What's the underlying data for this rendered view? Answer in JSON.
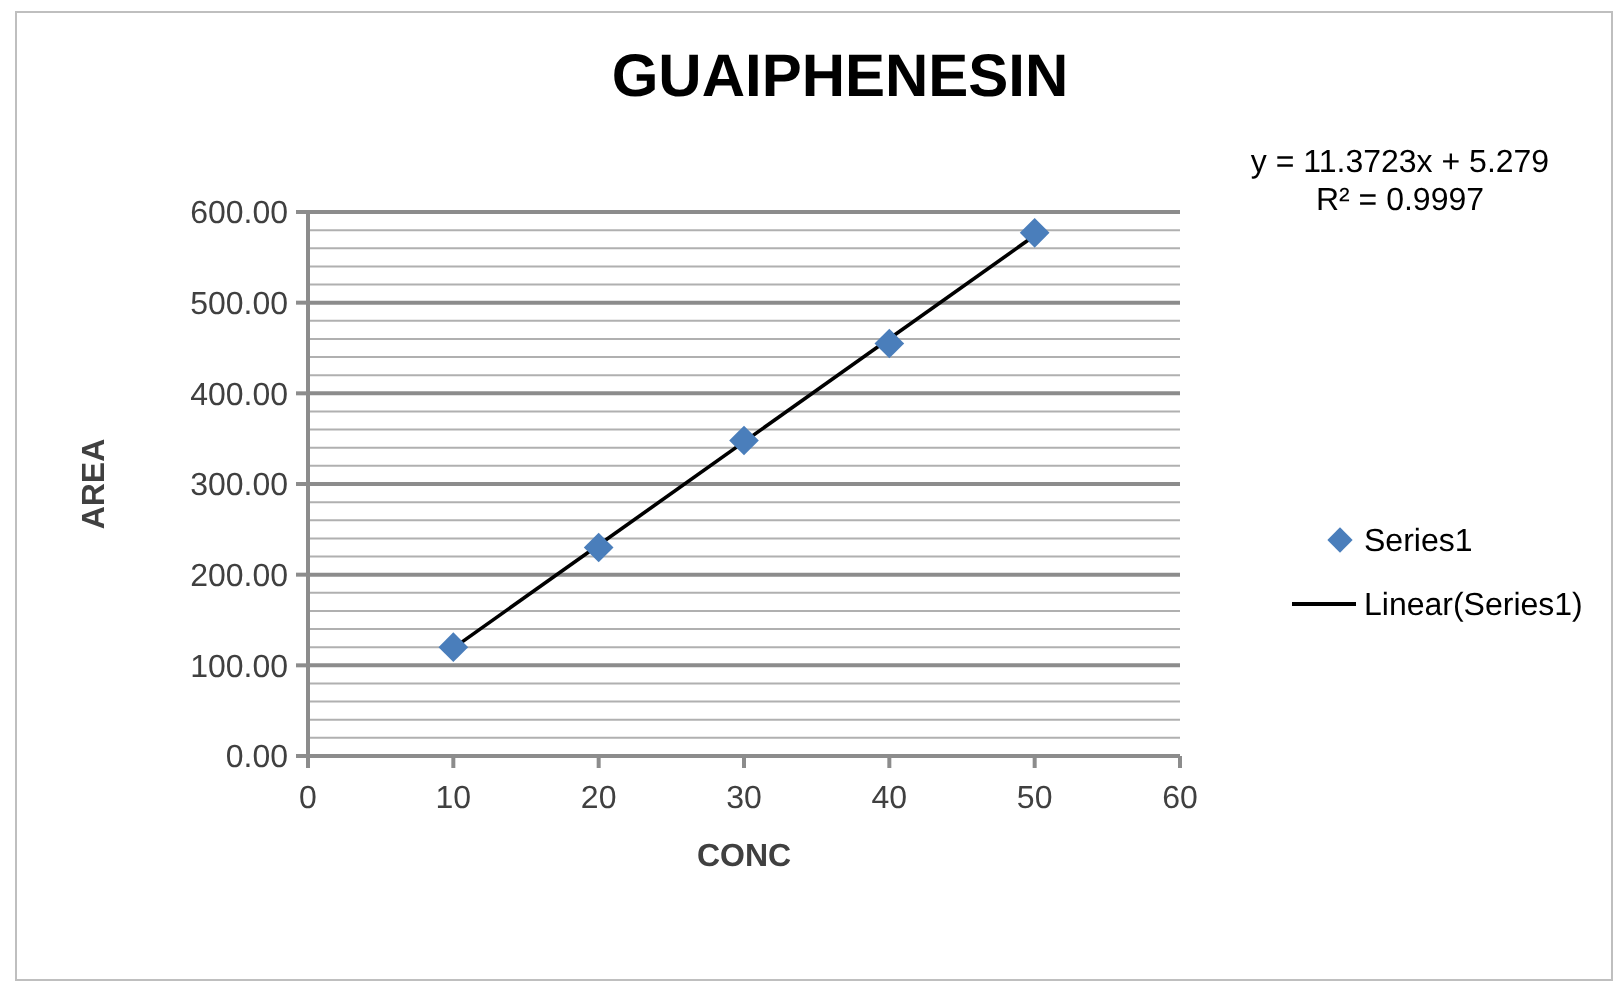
{
  "chart_data": {
    "type": "scatter",
    "title": "GUAIPHENESIN",
    "xlabel": "CONC",
    "ylabel": "AREA",
    "annotations": [
      "y = 11.3723x + 5.279",
      "R² = 0.9997"
    ],
    "xlim": [
      0,
      60
    ],
    "xticks": [
      0,
      10,
      20,
      30,
      40,
      50,
      60
    ],
    "ylim": [
      0,
      600
    ],
    "yticks": [
      {
        "value": 0,
        "label": "0.00"
      },
      {
        "value": 20,
        "label": null
      },
      {
        "value": 40,
        "label": null
      },
      {
        "value": 60,
        "label": null
      },
      {
        "value": 80,
        "label": null
      },
      {
        "value": 100,
        "label": "100.00"
      },
      {
        "value": 120,
        "label": null
      },
      {
        "value": 140,
        "label": null
      },
      {
        "value": 160,
        "label": null
      },
      {
        "value": 180,
        "label": null
      },
      {
        "value": 200,
        "label": "200.00"
      },
      {
        "value": 220,
        "label": null
      },
      {
        "value": 240,
        "label": null
      },
      {
        "value": 260,
        "label": null
      },
      {
        "value": 280,
        "label": null
      },
      {
        "value": 300,
        "label": "300.00"
      },
      {
        "value": 320,
        "label": null
      },
      {
        "value": 340,
        "label": null
      },
      {
        "value": 360,
        "label": null
      },
      {
        "value": 380,
        "label": null
      },
      {
        "value": 400,
        "label": "400.00"
      },
      {
        "value": 420,
        "label": null
      },
      {
        "value": 440,
        "label": null
      },
      {
        "value": 460,
        "label": null
      },
      {
        "value": 480,
        "label": null
      },
      {
        "value": 500,
        "label": "500.00"
      },
      {
        "value": 520,
        "label": null
      },
      {
        "value": 540,
        "label": null
      },
      {
        "value": 560,
        "label": null
      },
      {
        "value": 580,
        "label": null
      },
      {
        "value": 600,
        "label": "600.00"
      }
    ],
    "grid": "y",
    "legend": "right",
    "series": [
      {
        "name": "Series1",
        "type": "scatter",
        "marker": "diamond",
        "color": "#4a7ebb",
        "x": [
          10,
          20,
          30,
          40,
          50
        ],
        "values": [
          120,
          230,
          348,
          455,
          577
        ]
      },
      {
        "name": "Linear(Series1)",
        "type": "line",
        "color": "#000000",
        "line_style": "solid",
        "x": [
          10,
          50
        ],
        "values": [
          119,
          574
        ]
      }
    ]
  }
}
